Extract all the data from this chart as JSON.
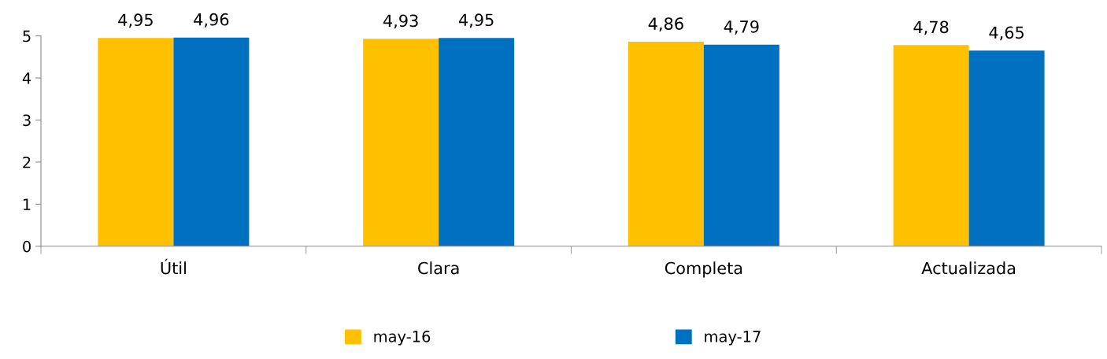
{
  "chart_data": {
    "type": "bar",
    "categories": [
      "Útil",
      "Clara",
      "Completa",
      "Actualizada"
    ],
    "series": [
      {
        "name": "may-16",
        "color": "#ffc000",
        "values": [
          4.95,
          4.93,
          4.86,
          4.78
        ],
        "value_labels": [
          "4,95",
          "4,93",
          "4,86",
          "4,78"
        ]
      },
      {
        "name": "may-17",
        "color": "#0070c0",
        "values": [
          4.96,
          4.95,
          4.79,
          4.65
        ],
        "value_labels": [
          "4,96",
          "4,95",
          "4,79",
          "4,65"
        ]
      }
    ],
    "ylim": [
      0,
      5
    ],
    "yticks": [
      0,
      1,
      2,
      3,
      4,
      5
    ],
    "grid": false,
    "legend": "bottom"
  }
}
